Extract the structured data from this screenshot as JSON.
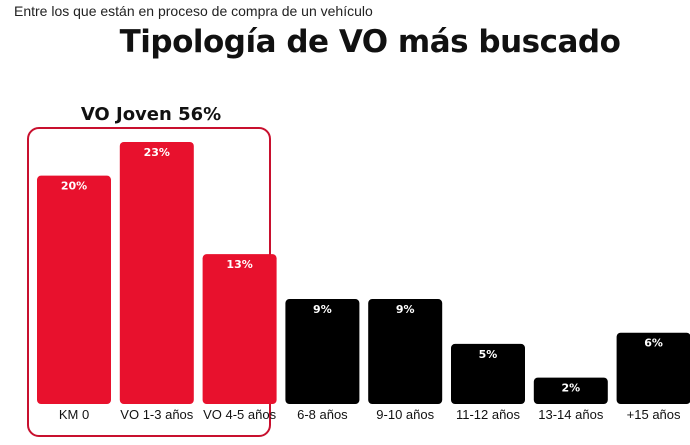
{
  "subtitle": "Entre los que están en proceso de compra de un vehículo",
  "colors": {
    "highlight": "#e8112d",
    "default": "#000000",
    "box": "#c8102e"
  },
  "chart_data": {
    "type": "bar",
    "title": "Tipología de VO más buscado",
    "subtitle": "Entre los que están en proceso de compra de un vehículo",
    "categories": [
      "KM 0",
      "VO 1-3 años",
      "VO 4-5 años",
      "6-8 años",
      "9-10 años",
      "11-12 años",
      "13-14 años",
      "+15 años"
    ],
    "values": [
      20,
      23,
      13,
      9,
      9,
      5,
      2,
      6
    ],
    "value_labels": [
      "20%",
      "23%",
      "13%",
      "9%",
      "9%",
      "5%",
      "2%",
      "6%"
    ],
    "highlight": [
      true,
      true,
      true,
      false,
      false,
      false,
      false,
      false
    ],
    "group": {
      "label": "VO Joven 56%",
      "categories": [
        "KM 0",
        "VO 1-3 años",
        "VO 4-5 años"
      ]
    },
    "ylim": [
      0,
      23
    ],
    "grid": false,
    "legend": "none"
  }
}
